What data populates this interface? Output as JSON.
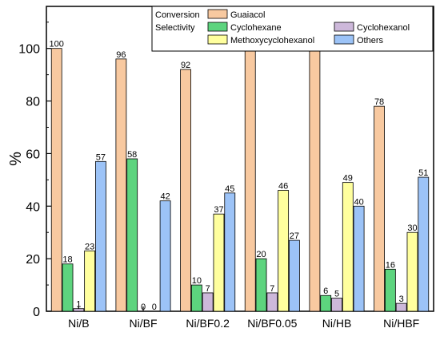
{
  "chart_data": {
    "type": "bar",
    "title": "",
    "xlabel": "",
    "ylabel": "%",
    "ylim": [
      0,
      116
    ],
    "yticks": [
      0,
      20,
      40,
      60,
      80,
      100
    ],
    "grid": false,
    "legend": {
      "placement": "top-right",
      "group_labels": [
        "Conversion",
        "Selectivity"
      ]
    },
    "categories": [
      "Ni/B",
      "Ni/BF",
      "Ni/BF0.2",
      "Ni/BF0.05",
      "Ni/HB",
      "Ni/HBF"
    ],
    "series": [
      {
        "name": "Guaiacol",
        "group": "Conversion",
        "color": "#F8C9A0",
        "values": [
          100,
          96,
          92,
          99,
          100,
          78
        ]
      },
      {
        "name": "Cyclohexane",
        "group": "Selectivity",
        "color": "#5DD47E",
        "values": [
          18,
          58,
          10,
          20,
          6,
          16
        ]
      },
      {
        "name": "Cyclohexanol",
        "group": "Selectivity",
        "color": "#CDB8DA",
        "values": [
          1,
          0,
          7,
          7,
          5,
          3
        ]
      },
      {
        "name": "Methoxycyclohexanol",
        "group": "Selectivity",
        "color": "#FFFF9E",
        "values": [
          23,
          0,
          37,
          46,
          49,
          30
        ]
      },
      {
        "name": "Others",
        "group": "Selectivity",
        "color": "#9CC3F7",
        "values": [
          57,
          42,
          45,
          27,
          40,
          51
        ]
      }
    ]
  }
}
